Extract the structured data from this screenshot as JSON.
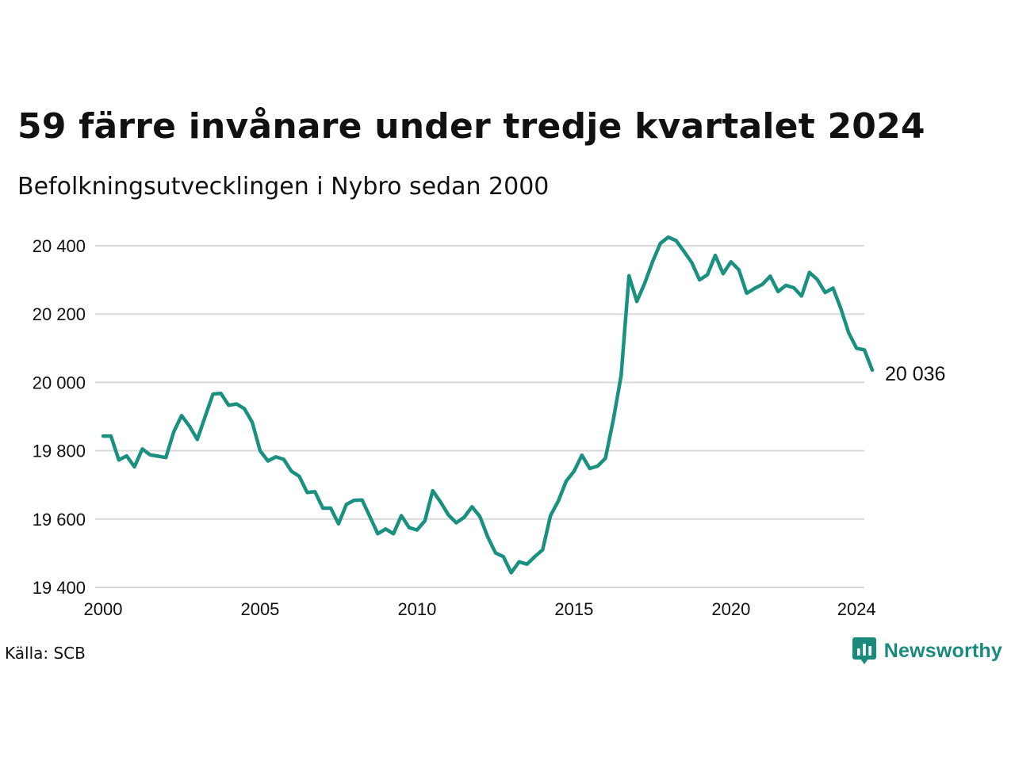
{
  "header": {
    "title": "59 färre invånare under tredje kvartalet 2024",
    "subtitle": "Befolkningsutvecklingen i Nybro sedan 2000"
  },
  "footer": {
    "source": "Källa: SCB",
    "brand": "Newsworthy"
  },
  "colors": {
    "line": "#1a9080",
    "brand": "#1a8a7c",
    "grid": "#d9d9d9"
  },
  "chart_data": {
    "type": "line",
    "title": "59 färre invånare under tredje kvartalet 2024",
    "subtitle": "Befolkningsutvecklingen i Nybro sedan 2000",
    "xlabel": "",
    "ylabel": "",
    "xlim": [
      2000,
      2024.5
    ],
    "ylim": [
      19400,
      20400
    ],
    "x_ticks": [
      2000,
      2005,
      2010,
      2015,
      2020,
      2024
    ],
    "x_tick_labels": [
      "2000",
      "2005",
      "2010",
      "2015",
      "2020",
      "2024"
    ],
    "y_ticks": [
      19400,
      19600,
      19800,
      20000,
      20200,
      20400
    ],
    "y_tick_labels": [
      "19 400",
      "19 600",
      "19 800",
      "20 000",
      "20 200",
      "20 400"
    ],
    "grid": "horizontal",
    "end_label": "20 036",
    "series": [
      {
        "values": [
          19843,
          19843,
          19773,
          19785,
          19753,
          19805,
          19788,
          19784,
          19780,
          19855,
          19903,
          19872,
          19833,
          19900,
          19966,
          19968,
          19933,
          19937,
          19923,
          19883,
          19800,
          19770,
          19782,
          19775,
          19740,
          19725,
          19678,
          19680,
          19632,
          19632,
          19586,
          19643,
          19655,
          19656,
          19607,
          19557,
          19571,
          19557,
          19610,
          19575,
          19568,
          19595,
          19683,
          19650,
          19612,
          19589,
          19605,
          19636,
          19608,
          19548,
          19501,
          19490,
          19443,
          19475,
          19468,
          19490,
          19510,
          19610,
          19653,
          19711,
          19740,
          19787,
          19748,
          19755,
          19778,
          19890,
          20020,
          20312,
          20237,
          20290,
          20353,
          20407,
          20425,
          20415,
          20384,
          20351,
          20300,
          20315,
          20372,
          20318,
          20353,
          20330,
          20261,
          20275,
          20287,
          20311,
          20266,
          20284,
          20277,
          20253,
          20322,
          20301,
          20263,
          20276,
          20216,
          20145,
          20100,
          20095,
          20036
        ]
      }
    ]
  }
}
